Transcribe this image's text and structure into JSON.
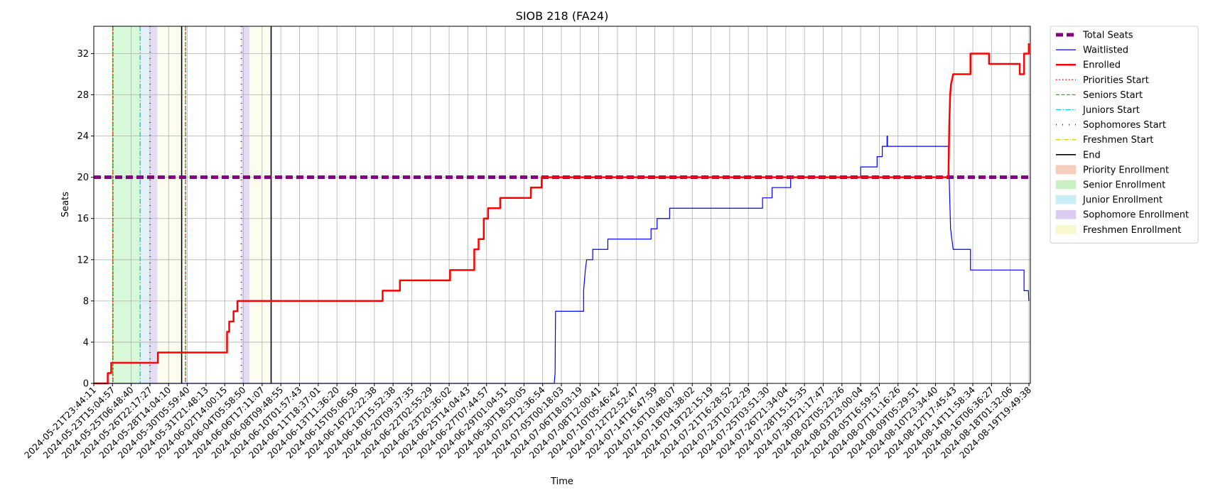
{
  "chart_data": {
    "type": "line",
    "title": "SIOB 218 (FA24)",
    "xlabel": "Time",
    "ylabel": "Seats",
    "ylim": [
      0,
      34.65
    ],
    "xlim": [
      "2024-05-21T23:44:11",
      "2024-08-20T06:35:00"
    ],
    "grid": true,
    "legend_position": "outside-right",
    "yticks": [
      0,
      4,
      8,
      12,
      16,
      20,
      24,
      28,
      32
    ],
    "xtick_labels": [
      "2024-05-21T23:44:11",
      "2024-05-23T15:04:57",
      "2024-05-25T06:48:40",
      "2024-05-26T22:17:27",
      "2024-05-28T14:04:10",
      "2024-05-30T05:59:40",
      "2024-05-31T21:48:13",
      "2024-06-02T14:00:15",
      "2024-06-04T05:58:50",
      "2024-06-06T17:11:07",
      "2024-06-08T09:48:55",
      "2024-06-10T01:57:43",
      "2024-06-11T18:37:01",
      "2024-06-13T11:36:20",
      "2024-06-15T05:06:56",
      "2024-06-16T22:22:38",
      "2024-06-18T15:52:38",
      "2024-06-20T09:37:35",
      "2024-06-22T02:55:29",
      "2024-06-23T20:36:02",
      "2024-06-25T14:04:43",
      "2024-06-27T07:44:57",
      "2024-06-29T01:04:51",
      "2024-06-30T18:50:05",
      "2024-07-02T12:36:54",
      "2024-07-05T00:18:03",
      "2024-07-06T18:03:19",
      "2024-07-08T12:00:41",
      "2024-07-10T05:46:42",
      "2024-07-12T22:52:47",
      "2024-07-14T16:47:59",
      "2024-07-16T10:48:07",
      "2024-07-18T04:38:02",
      "2024-07-19T22:15:19",
      "2024-07-21T16:28:52",
      "2024-07-23T10:22:29",
      "2024-07-25T03:51:30",
      "2024-07-26T21:34:04",
      "2024-07-28T15:15:35",
      "2024-07-30T21:17:47",
      "2024-08-02T05:23:26",
      "2024-08-03T23:00:04",
      "2024-08-05T16:59:57",
      "2024-08-07T11:16:26",
      "2024-08-09T05:29:51",
      "2024-08-10T23:34:40",
      "2024-08-12T17:45:43",
      "2024-08-14T11:58:34",
      "2024-08-16T06:36:27",
      "2024-08-18T01:32:06",
      "2024-08-19T19:49:38"
    ],
    "total_seats": 20,
    "phases": [
      {
        "name": "Senior Enrollment",
        "start": "2024-05-23T20:00:00",
        "end": "2024-05-26T11:00:00",
        "color": "#90ee90"
      },
      {
        "name": "Junior Enrollment",
        "start": "2024-05-26T11:00:00",
        "end": "2024-05-27T10:00:00",
        "color": "#add8e6"
      },
      {
        "name": "Sophomore Enrollment",
        "start": "2024-05-27T10:00:00",
        "end": "2024-05-28T03:00:00",
        "color": "#b19cd9"
      },
      {
        "name": "Freshmen Enrollment",
        "start": "2024-05-28T03:00:00",
        "end": "2024-05-30T11:00:00",
        "color": "#fafad2"
      },
      {
        "name": "Sophomore Enrollment",
        "start": "2024-06-05T05:00:00",
        "end": "2024-06-06T00:00:00",
        "color": "#b19cd9"
      },
      {
        "name": "Freshmen Enrollment",
        "start": "2024-06-06T00:00:00",
        "end": "2024-06-08T02:00:00",
        "color": "#fafad2"
      }
    ],
    "markers": [
      {
        "name": "Seniors Start",
        "time": "2024-05-23T20:00:00"
      },
      {
        "name": "Priorities Start",
        "time": "2024-05-23T20:00:00"
      },
      {
        "name": "Juniors Start",
        "time": "2024-05-26T11:00:00"
      },
      {
        "name": "Sophomores Start",
        "time": "2024-05-27T10:00:00"
      },
      {
        "name": "End",
        "time": "2024-05-30T11:00:00"
      },
      {
        "name": "Seniors Start",
        "time": "2024-05-30T20:00:00"
      },
      {
        "name": "Priorities Start",
        "time": "2024-05-30T20:00:00"
      },
      {
        "name": "Sophomores Start",
        "time": "2024-06-05T05:00:00"
      },
      {
        "name": "End",
        "time": "2024-06-08T02:00:00"
      }
    ],
    "series": [
      {
        "name": "Enrolled",
        "color": "#ff0000",
        "points": [
          [
            "2024-05-21T23:44:11",
            0
          ],
          [
            "2024-05-23T08:00:00",
            0
          ],
          [
            "2024-05-23T08:00:00",
            1
          ],
          [
            "2024-05-23T16:00:00",
            1
          ],
          [
            "2024-05-23T16:00:00",
            2
          ],
          [
            "2024-05-28T04:00:00",
            2
          ],
          [
            "2024-05-28T04:00:00",
            3
          ],
          [
            "2024-06-03T20:00:00",
            3
          ],
          [
            "2024-06-03T20:00:00",
            5
          ],
          [
            "2024-06-04T01:00:00",
            5
          ],
          [
            "2024-06-04T01:00:00",
            6
          ],
          [
            "2024-06-04T11:00:00",
            6
          ],
          [
            "2024-06-04T11:00:00",
            7
          ],
          [
            "2024-06-04T20:00:00",
            7
          ],
          [
            "2024-06-04T20:00:00",
            8
          ],
          [
            "2024-06-18T20:00:00",
            8
          ],
          [
            "2024-06-18T20:00:00",
            9
          ],
          [
            "2024-06-20T12:00:00",
            9
          ],
          [
            "2024-06-20T12:00:00",
            10
          ],
          [
            "2024-06-25T08:00:00",
            10
          ],
          [
            "2024-06-25T08:00:00",
            11
          ],
          [
            "2024-06-27T16:00:00",
            11
          ],
          [
            "2024-06-27T16:00:00",
            13
          ],
          [
            "2024-06-28T02:00:00",
            13
          ],
          [
            "2024-06-28T02:00:00",
            14
          ],
          [
            "2024-06-28T14:00:00",
            14
          ],
          [
            "2024-06-28T14:00:00",
            16
          ],
          [
            "2024-06-29T00:00:00",
            16
          ],
          [
            "2024-06-29T00:00:00",
            17
          ],
          [
            "2024-06-30T04:00:00",
            17
          ],
          [
            "2024-06-30T04:00:00",
            18
          ],
          [
            "2024-07-03T03:00:00",
            18
          ],
          [
            "2024-07-03T03:00:00",
            19
          ],
          [
            "2024-07-04T04:00:00",
            19
          ],
          [
            "2024-07-04T04:00:00",
            20
          ],
          [
            "2024-08-12T09:00:00",
            20
          ],
          [
            "2024-08-12T11:00:00",
            25
          ],
          [
            "2024-08-12T13:00:00",
            28
          ],
          [
            "2024-08-12T15:00:00",
            29
          ],
          [
            "2024-08-12T20:00:00",
            30
          ],
          [
            "2024-08-14T12:00:00",
            30
          ],
          [
            "2024-08-14T12:00:00",
            32
          ],
          [
            "2024-08-16T07:00:00",
            32
          ],
          [
            "2024-08-16T07:00:00",
            31
          ],
          [
            "2024-08-19T06:00:00",
            31
          ],
          [
            "2024-08-19T06:00:00",
            30
          ],
          [
            "2024-08-19T16:00:00",
            30
          ],
          [
            "2024-08-19T16:00:00",
            32
          ],
          [
            "2024-08-20T03:00:00",
            32
          ],
          [
            "2024-08-20T03:00:00",
            33
          ]
        ]
      },
      {
        "name": "Waitlisted",
        "color": "#0000ff",
        "points": [
          [
            "2024-05-21T23:44:11",
            0
          ],
          [
            "2024-07-05T09:00:00",
            0
          ],
          [
            "2024-07-05T11:00:00",
            1
          ],
          [
            "2024-07-05T12:00:00",
            7
          ],
          [
            "2024-07-08T05:00:00",
            7
          ],
          [
            "2024-07-08T05:00:00",
            9
          ],
          [
            "2024-07-08T07:00:00",
            10
          ],
          [
            "2024-07-08T09:00:00",
            11
          ],
          [
            "2024-07-08T12:00:00",
            12
          ],
          [
            "2024-07-09T02:00:00",
            12
          ],
          [
            "2024-07-09T02:00:00",
            13
          ],
          [
            "2024-07-10T13:00:00",
            13
          ],
          [
            "2024-07-10T13:00:00",
            14
          ],
          [
            "2024-07-14T17:00:00",
            14
          ],
          [
            "2024-07-14T17:00:00",
            15
          ],
          [
            "2024-07-15T07:00:00",
            15
          ],
          [
            "2024-07-15T07:00:00",
            16
          ],
          [
            "2024-07-16T12:00:00",
            16
          ],
          [
            "2024-07-16T12:00:00",
            17
          ],
          [
            "2024-07-25T11:00:00",
            17
          ],
          [
            "2024-07-25T11:00:00",
            18
          ],
          [
            "2024-07-26T09:00:00",
            18
          ],
          [
            "2024-07-26T09:00:00",
            19
          ],
          [
            "2024-07-28T04:00:00",
            19
          ],
          [
            "2024-07-28T04:00:00",
            20
          ],
          [
            "2024-08-03T22:00:00",
            20
          ],
          [
            "2024-08-03T22:00:00",
            21
          ],
          [
            "2024-08-05T12:00:00",
            21
          ],
          [
            "2024-08-05T12:00:00",
            22
          ],
          [
            "2024-08-06T00:00:00",
            22
          ],
          [
            "2024-08-06T00:00:00",
            23
          ],
          [
            "2024-08-06T11:00:00",
            23
          ],
          [
            "2024-08-06T11:00:00",
            24
          ],
          [
            "2024-08-06T12:00:00",
            24
          ],
          [
            "2024-08-06T12:00:00",
            23
          ],
          [
            "2024-08-12T09:00:00",
            23
          ],
          [
            "2024-08-12T12:00:00",
            18
          ],
          [
            "2024-08-12T14:00:00",
            15
          ],
          [
            "2024-08-12T17:00:00",
            14
          ],
          [
            "2024-08-12T20:00:00",
            13
          ],
          [
            "2024-08-14T12:00:00",
            13
          ],
          [
            "2024-08-14T12:00:00",
            11
          ],
          [
            "2024-08-19T16:00:00",
            11
          ],
          [
            "2024-08-19T16:00:00",
            9
          ],
          [
            "2024-08-20T02:00:00",
            9
          ],
          [
            "2024-08-20T03:00:00",
            8
          ]
        ]
      }
    ]
  },
  "legend": [
    {
      "label": "Total Seats",
      "kind": "line",
      "color": "#800080",
      "width": 5,
      "dash": "10,5"
    },
    {
      "label": "Waitlisted",
      "kind": "line",
      "color": "#0000ff",
      "width": 1.2,
      "dash": ""
    },
    {
      "label": "Enrolled",
      "kind": "line",
      "color": "#ff0000",
      "width": 2.5,
      "dash": ""
    },
    {
      "label": "Priorities Start",
      "kind": "line",
      "color": "#ff0000",
      "width": 1.3,
      "dash": "1.5,3"
    },
    {
      "label": "Seniors Start",
      "kind": "line",
      "color": "#22bb00",
      "width": 1.3,
      "dash": "5,2.5"
    },
    {
      "label": "Juniors Start",
      "kind": "line",
      "color": "#00cccc",
      "width": 1.3,
      "dash": "7,2.5,1.5,2.5"
    },
    {
      "label": "Sophomores Start",
      "kind": "line",
      "color": "#6600cc",
      "width": 1.8,
      "dash": "1,8"
    },
    {
      "label": "Freshmen Start",
      "kind": "line",
      "color": "#ddcc00",
      "width": 1.3,
      "dash": "6,2,1.5,2"
    },
    {
      "label": "End",
      "kind": "line",
      "color": "#000000",
      "width": 1.6,
      "dash": ""
    },
    {
      "label": "Priority Enrollment",
      "kind": "patch",
      "color": "#f4c9b5"
    },
    {
      "label": "Senior Enrollment",
      "kind": "patch",
      "color": "#c4f0c0"
    },
    {
      "label": "Junior Enrollment",
      "kind": "patch",
      "color": "#c4ecf4"
    },
    {
      "label": "Sophomore Enrollment",
      "kind": "patch",
      "color": "#d9c6ef"
    },
    {
      "label": "Freshmen Enrollment",
      "kind": "patch",
      "color": "#f8f6c8"
    }
  ]
}
